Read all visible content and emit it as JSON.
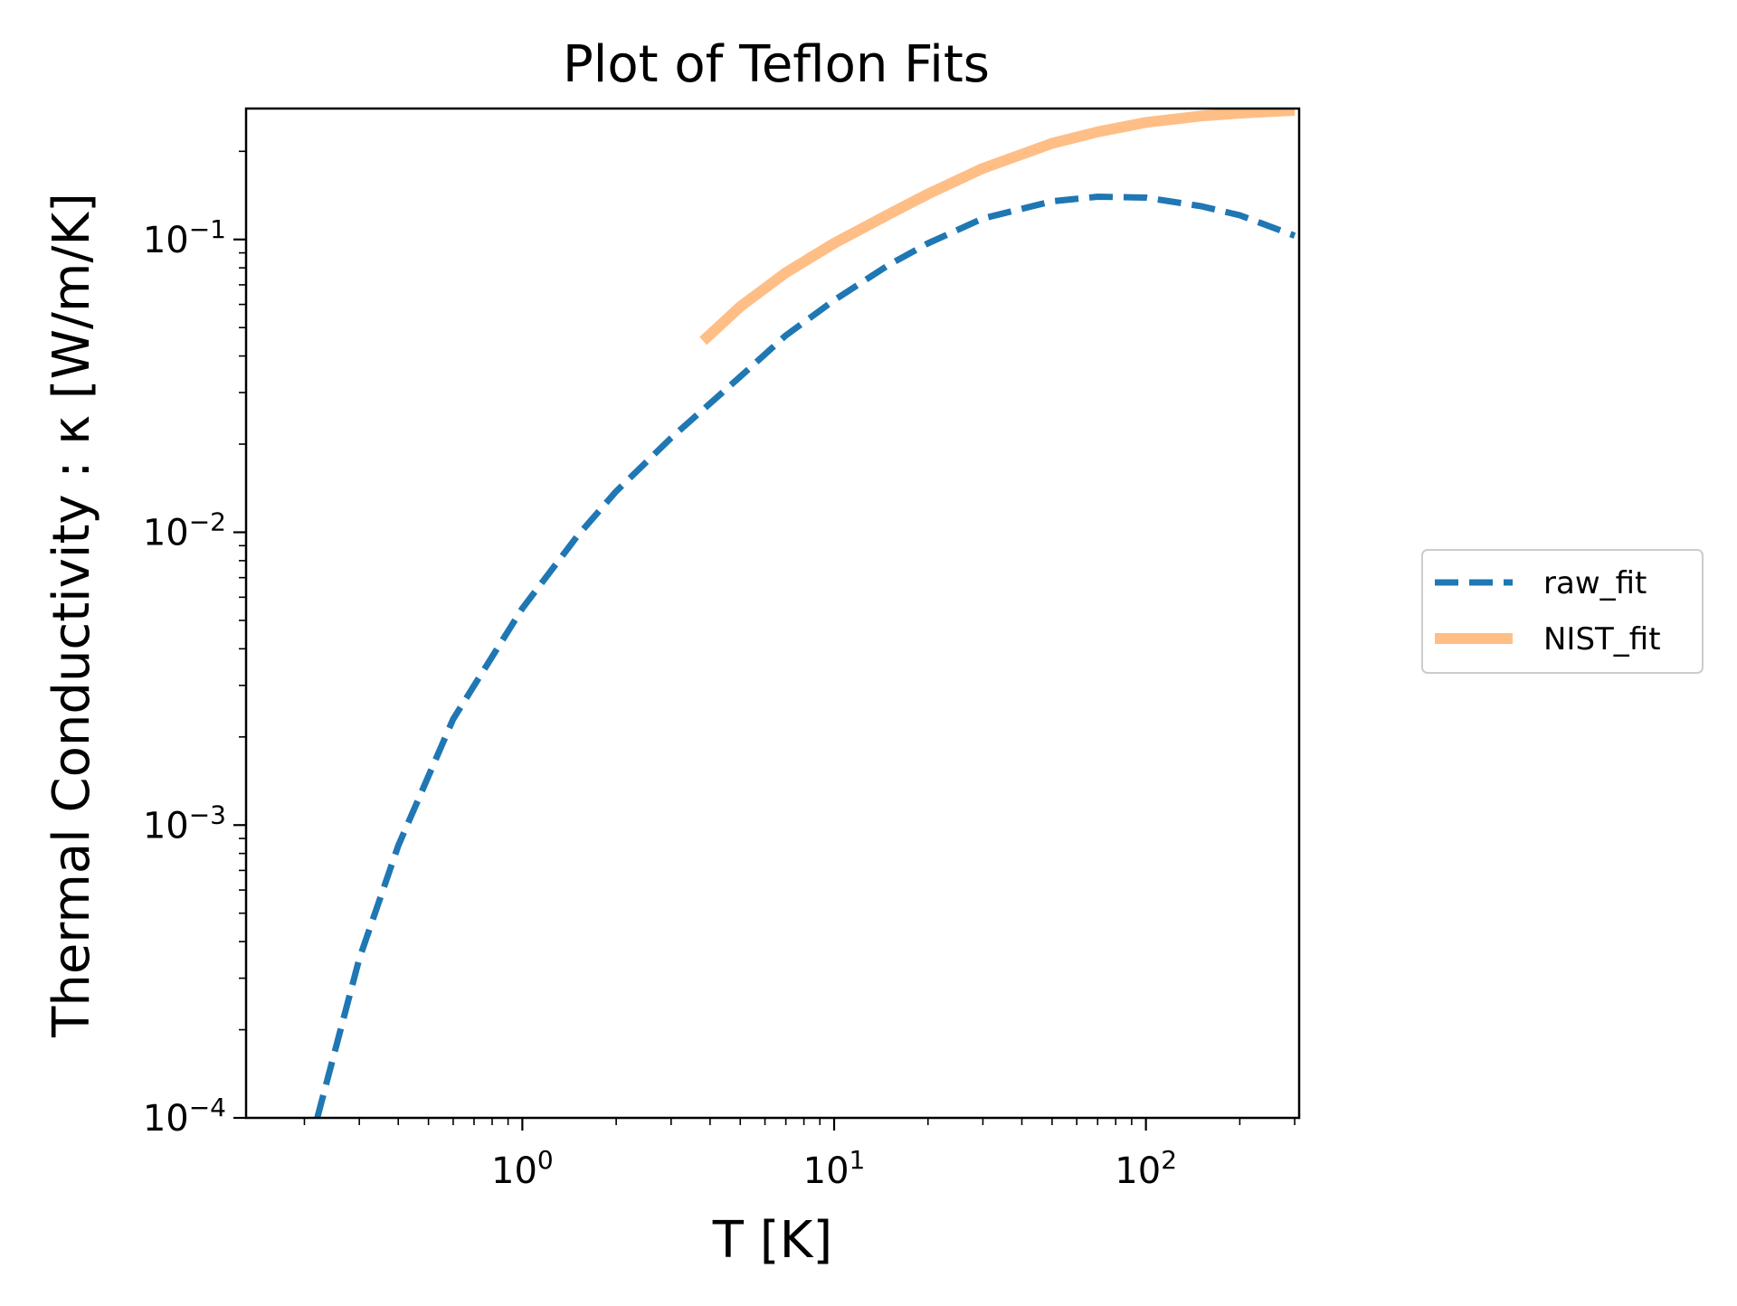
{
  "chart_data": {
    "type": "line",
    "title": "Plot of Teflon Fits",
    "xlabel": "T [K]",
    "ylabel": "Thermal Conductivity : κ [W/m/K]",
    "xscale": "log",
    "yscale": "log",
    "xlim": [
      0.13,
      310
    ],
    "ylim": [
      0.0001,
      0.28
    ],
    "grid": false,
    "legend_position": "outside-right",
    "x_ticks": [
      {
        "value": 1,
        "base": "10",
        "exp": "0"
      },
      {
        "value": 10,
        "base": "10",
        "exp": "1"
      },
      {
        "value": 100,
        "base": "10",
        "exp": "2"
      }
    ],
    "y_ticks": [
      {
        "value": 0.0001,
        "base": "10",
        "exp": "−4"
      },
      {
        "value": 0.001,
        "base": "10",
        "exp": "−3"
      },
      {
        "value": 0.01,
        "base": "10",
        "exp": "−2"
      },
      {
        "value": 0.1,
        "base": "10",
        "exp": "−1"
      }
    ],
    "series": [
      {
        "name": "raw_fit",
        "color": "#1f77b4",
        "style": "dashed",
        "x": [
          0.22,
          0.3,
          0.4,
          0.6,
          1.0,
          1.5,
          2.0,
          3.0,
          5.0,
          7.0,
          10,
          15,
          20,
          30,
          50,
          70,
          100,
          150,
          200,
          300
        ],
        "y": [
          0.0001,
          0.00035,
          0.00085,
          0.0023,
          0.0055,
          0.0097,
          0.0138,
          0.021,
          0.034,
          0.047,
          0.062,
          0.082,
          0.097,
          0.118,
          0.135,
          0.14,
          0.139,
          0.13,
          0.121,
          0.103
        ]
      },
      {
        "name": "NIST_fit",
        "color": "#ffbe86",
        "style": "solid",
        "x": [
          3.8,
          5,
          7,
          10,
          15,
          20,
          30,
          50,
          70,
          100,
          150,
          200,
          300
        ],
        "y": [
          0.045,
          0.059,
          0.077,
          0.097,
          0.122,
          0.143,
          0.175,
          0.213,
          0.233,
          0.251,
          0.264,
          0.27,
          0.276
        ]
      }
    ]
  }
}
